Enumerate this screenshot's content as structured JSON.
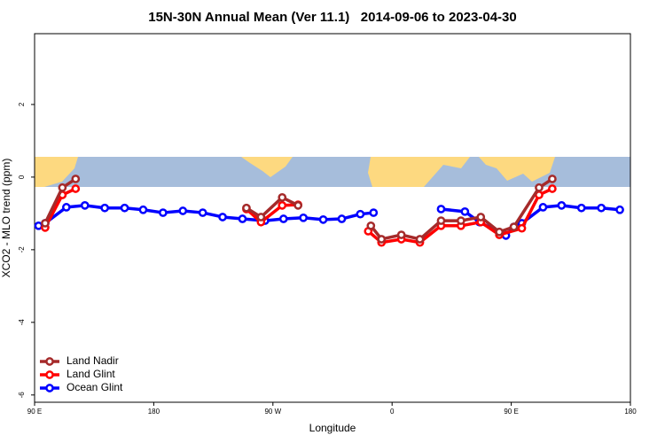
{
  "chart_data": {
    "type": "line",
    "title": "15N-30N Annual Mean (Ver 11.1)   2014-09-06 to 2023-04-30",
    "x_label": "Longitude",
    "y_label": "XCO2 - MLO trend (ppm)",
    "xlim": [
      90,
      540
    ],
    "xticks": [
      {
        "value": 90,
        "label": "90 E"
      },
      180,
      {
        "value": 270,
        "label": "90 W"
      },
      {
        "value": 360,
        "label": "0"
      },
      {
        "value": 450,
        "label": "90 E"
      },
      {
        "value": 540,
        "label": "180"
      }
    ],
    "ylim": [
      -6.2,
      3.95
    ],
    "yticks": [
      -6,
      -4,
      -2,
      0,
      2
    ],
    "legend": "bottom-left",
    "series": [
      {
        "name": "Land Nadir",
        "color": "#a52a2a",
        "x": [
          98,
          111,
          121,
          null,
          250,
          261,
          277,
          289,
          null,
          344,
          352,
          367,
          381,
          397,
          412,
          427,
          441,
          452,
          471,
          481
        ],
        "values": [
          -1.27,
          -0.29,
          -0.05,
          null,
          -0.85,
          -1.1,
          -0.56,
          -0.78,
          null,
          -1.34,
          -1.71,
          -1.59,
          -1.71,
          -1.2,
          -1.2,
          -1.1,
          -1.51,
          -1.37,
          -0.29,
          -0.05
        ]
      },
      {
        "name": "Land Glint",
        "color": "#ff0000",
        "x": [
          98,
          111,
          121,
          null,
          250,
          261,
          277,
          289,
          null,
          342,
          352,
          367,
          381,
          397,
          412,
          427,
          441,
          458,
          471,
          481
        ],
        "values": [
          -1.39,
          -0.49,
          -0.32,
          null,
          -0.88,
          -1.24,
          -0.78,
          -0.76,
          null,
          -1.49,
          -1.8,
          -1.71,
          -1.8,
          -1.34,
          -1.34,
          -1.24,
          -1.59,
          -1.41,
          -0.49,
          -0.32
        ]
      },
      {
        "name": "Ocean Glint",
        "color": "#0000ff",
        "x": [
          93,
          98,
          114,
          128,
          143,
          158,
          172,
          187,
          202,
          217,
          232,
          247,
          264,
          278,
          293,
          308,
          322,
          336,
          346,
          null,
          397,
          415,
          426,
          446,
          452,
          458,
          474,
          488,
          503,
          518,
          532
        ],
        "values": [
          -1.34,
          -1.27,
          -0.83,
          -0.78,
          -0.85,
          -0.85,
          -0.9,
          -0.98,
          -0.93,
          -0.98,
          -1.1,
          -1.15,
          -1.2,
          -1.15,
          -1.12,
          -1.17,
          -1.15,
          -1.02,
          -0.98,
          null,
          -0.88,
          -0.95,
          -1.24,
          -1.61,
          -1.37,
          -1.27,
          -0.83,
          -0.78,
          -0.85,
          -0.85,
          -0.9
        ]
      }
    ]
  }
}
